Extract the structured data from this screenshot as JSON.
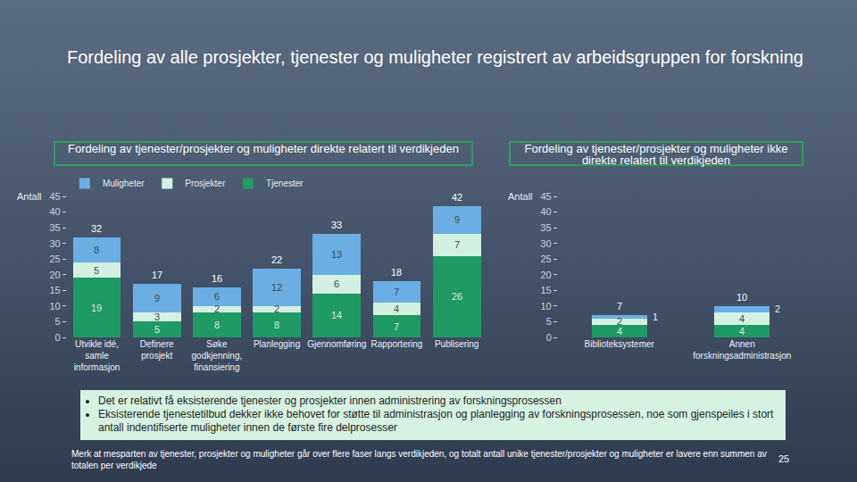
{
  "title": "Fordeling av alle prosjekter, tjenester og muligheter registrert av arbeidsgruppen for forskning",
  "chart_data": [
    {
      "type": "bar",
      "title": "Fordeling av tjenester/prosjekter og muligheter direkte relatert til verdikjeden",
      "y_label": "Antall",
      "categories": [
        "Utvikle idé, samle informasjon",
        "Definere prosjekt",
        "Søke godkjenning, finansiering",
        "Planlegging",
        "Gjennomføring",
        "Rapportering",
        "Publisering"
      ],
      "series": [
        {
          "name": "Tjenester",
          "color": "#1f9a64",
          "values": [
            19,
            5,
            8,
            8,
            14,
            7,
            26
          ]
        },
        {
          "name": "Prosjekter",
          "color": "#d3f1e2",
          "values": [
            5,
            3,
            2,
            2,
            6,
            4,
            7
          ]
        },
        {
          "name": "Muligheter",
          "color": "#6aaee3",
          "values": [
            8,
            9,
            6,
            12,
            13,
            7,
            9
          ]
        }
      ],
      "totals": [
        32,
        17,
        16,
        22,
        33,
        18,
        42
      ],
      "stacked": true,
      "data_labels": true,
      "legend": "top-left",
      "grid": false,
      "ylim": [
        0,
        45
      ],
      "yticks": [
        0,
        5,
        10,
        15,
        20,
        25,
        30,
        35,
        40,
        45
      ]
    },
    {
      "type": "bar",
      "title": "Fordeling av tjenester/prosjekter og muligheter ikke direkte relatert til verdikjeden",
      "y_label": "Antall",
      "categories": [
        "Biblioteksystemer",
        "Annen forskningsadministrasjon"
      ],
      "series": [
        {
          "name": "Tjenester",
          "color": "#1f9a64",
          "values": [
            4,
            4
          ]
        },
        {
          "name": "Prosjekter",
          "color": "#d3f1e2",
          "values": [
            2,
            4
          ]
        },
        {
          "name": "Muligheter",
          "color": "#6aaee3",
          "values": [
            1,
            2
          ]
        }
      ],
      "totals": [
        7,
        10
      ],
      "stacked": true,
      "data_labels": true,
      "grid": false,
      "ylim": [
        0,
        45
      ],
      "yticks": [
        0,
        5,
        10,
        15,
        20,
        25,
        30,
        35,
        40,
        45
      ]
    }
  ],
  "bullets": [
    "Det er relativt få eksisterende tjenester og prosjekter innen administrering av forskningsprosessen",
    "Eksisterende tjenestetilbud dekker ikke behovet for støtte til administrasjon og planlegging av forskningsprosessen, noe som gjenspeiles i stort antall indentifiserte muligheter innen de første fire delprosesser"
  ],
  "footnote": "Merk at mesparten av tjenester, prosjekter og muligheter går over flere faser langs verdikjeden, og totalt antall unike tjenester/prosjekter og muligheter er lavere enn summen av totalen per verdikjede",
  "page_number": "25"
}
